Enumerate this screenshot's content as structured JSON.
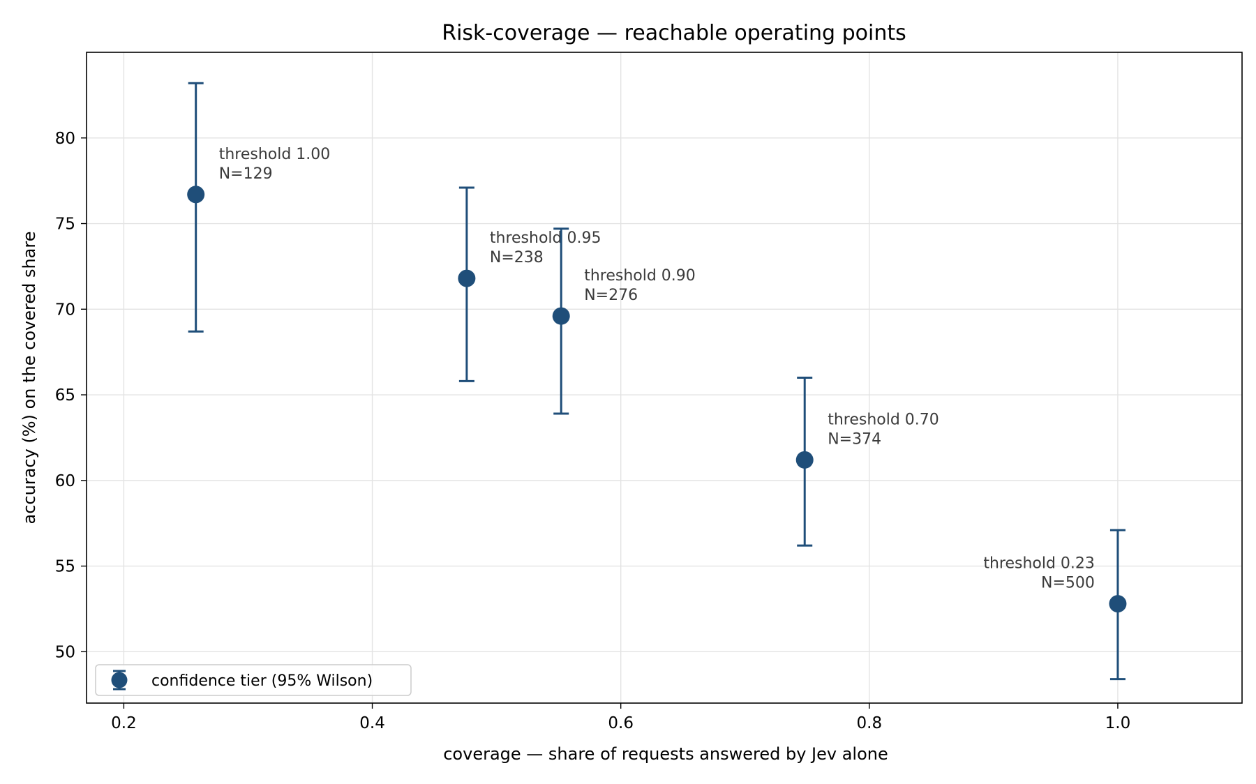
{
  "chart_data": {
    "type": "scatter",
    "title": "Risk-coverage — reachable operating points",
    "xlabel": "coverage — share of requests answered by Jev alone",
    "ylabel": "accuracy (%) on the covered share",
    "xlim": [
      0.17,
      1.1
    ],
    "ylim": [
      47.0,
      85.0
    ],
    "xticks": [
      0.2,
      0.4,
      0.6,
      0.8,
      1.0
    ],
    "xtick_labels": [
      "0.2",
      "0.4",
      "0.6",
      "0.8",
      "1.0"
    ],
    "yticks": [
      50,
      55,
      60,
      65,
      70,
      75,
      80
    ],
    "ytick_labels": [
      "50",
      "55",
      "60",
      "65",
      "70",
      "75",
      "80"
    ],
    "grid": true,
    "legend_position": "lower-left",
    "color": "#1f4e79",
    "series": [
      {
        "name": "confidence tier (95% Wilson)",
        "points": [
          {
            "x": 0.258,
            "y": 76.7,
            "lower": 68.7,
            "upper": 83.2,
            "label_threshold": "threshold 1.00",
            "label_n": "N=129",
            "label_side": "right"
          },
          {
            "x": 0.476,
            "y": 71.8,
            "lower": 65.8,
            "upper": 77.1,
            "label_threshold": "threshold 0.95",
            "label_n": "N=238",
            "label_side": "right"
          },
          {
            "x": 0.552,
            "y": 69.6,
            "lower": 63.9,
            "upper": 74.7,
            "label_threshold": "threshold 0.90",
            "label_n": "N=276",
            "label_side": "right"
          },
          {
            "x": 0.748,
            "y": 61.2,
            "lower": 56.2,
            "upper": 66.0,
            "label_threshold": "threshold 0.70",
            "label_n": "N=374",
            "label_side": "right"
          },
          {
            "x": 1.0,
            "y": 52.8,
            "lower": 48.4,
            "upper": 57.1,
            "label_threshold": "threshold 0.23",
            "label_n": "N=500",
            "label_side": "left"
          }
        ]
      }
    ]
  }
}
